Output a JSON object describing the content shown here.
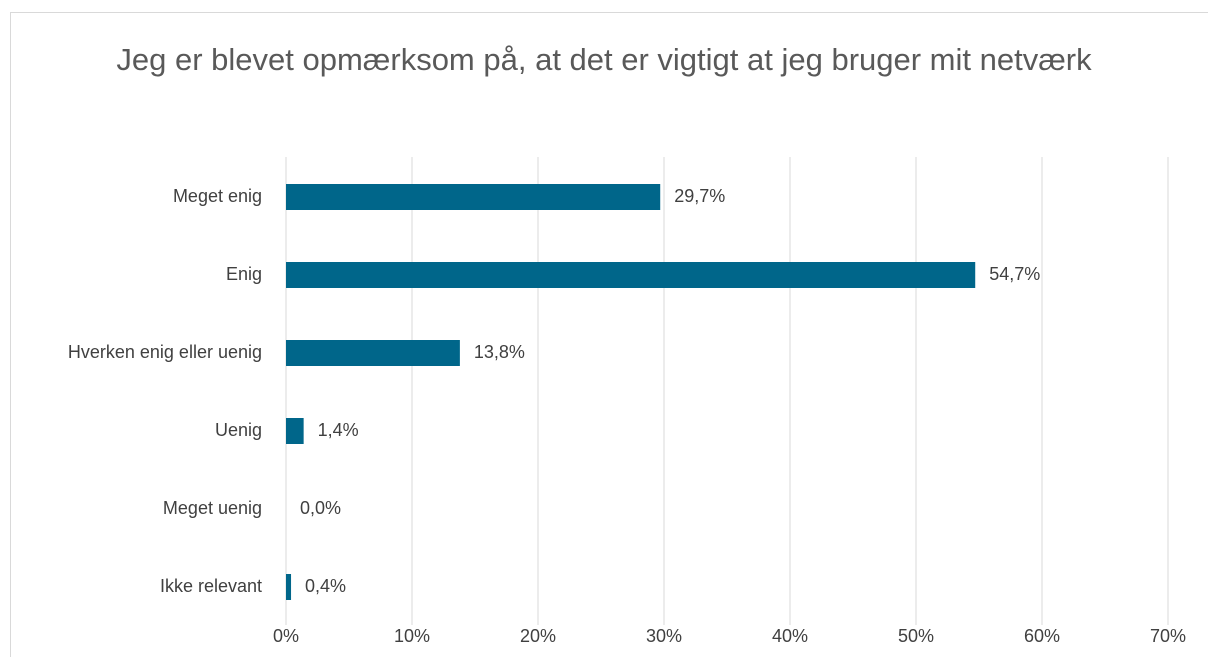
{
  "chart_data": {
    "type": "bar",
    "orientation": "horizontal",
    "title": "Jeg er blevet opmærksom på, at det er vigtigt at jeg bruger mit netværk",
    "categories": [
      "Meget enig",
      "Enig",
      "Hverken enig eller uenig",
      "Uenig",
      "Meget uenig",
      "Ikke relevant"
    ],
    "values": [
      29.7,
      54.7,
      13.8,
      1.4,
      0.0,
      0.4
    ],
    "value_labels": [
      "29,7%",
      "54,7%",
      "13,8%",
      "1,4%",
      "0,0%",
      "0,4%"
    ],
    "color": "#00668a",
    "xlim": [
      0,
      70
    ],
    "xticks": [
      {
        "value": 0,
        "label": "0%"
      },
      {
        "value": 10,
        "label": "10%"
      },
      {
        "value": 20,
        "label": "20%"
      },
      {
        "value": 30,
        "label": "30%"
      },
      {
        "value": 40,
        "label": "40%"
      },
      {
        "value": 50,
        "label": "50%"
      },
      {
        "value": 60,
        "label": "60%"
      },
      {
        "value": 70,
        "label": "70%"
      }
    ],
    "grid": true
  }
}
